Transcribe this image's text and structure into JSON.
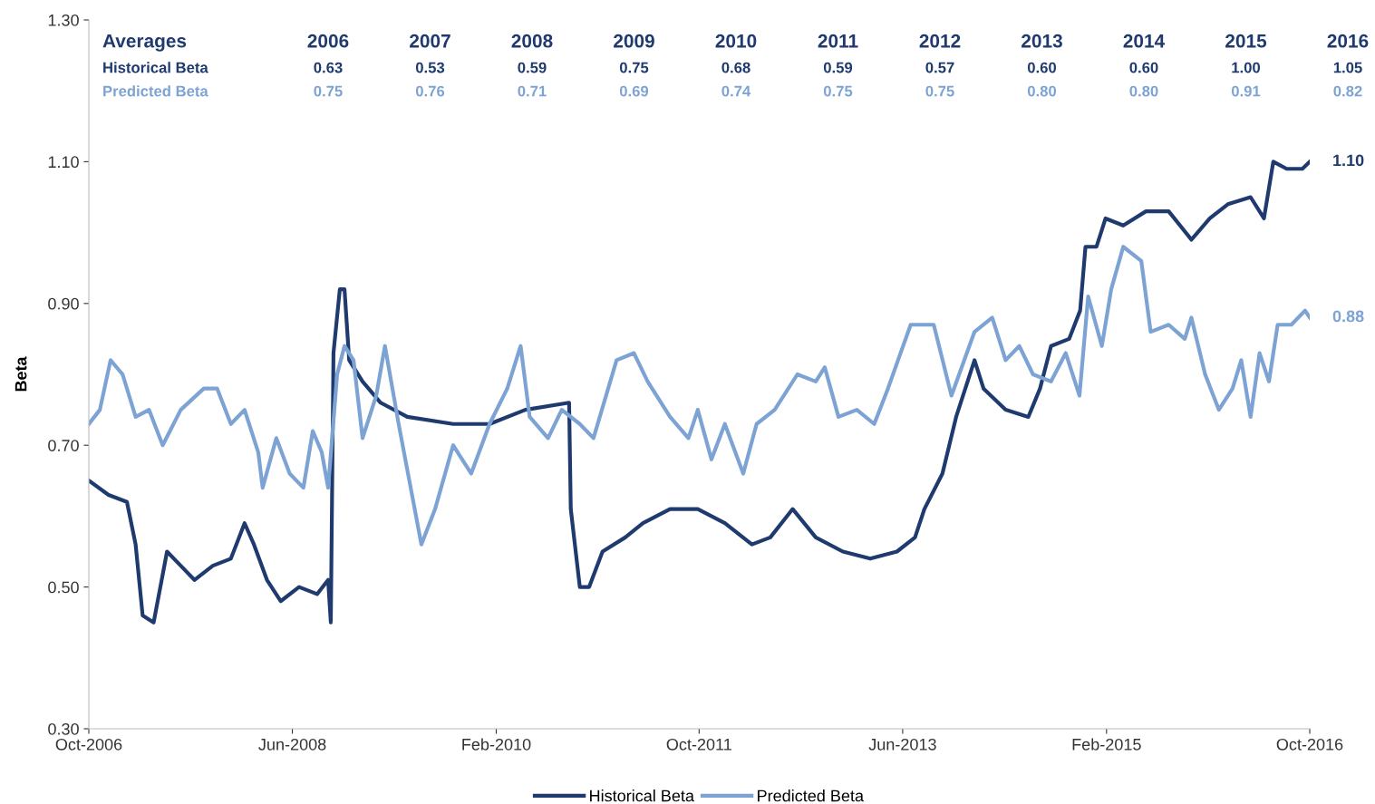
{
  "chart_data": {
    "type": "line",
    "ylabel": "Beta",
    "legend": "bottom",
    "grid": false,
    "line_style": "solid",
    "marker": "none",
    "xlim": [
      "2006-10-01",
      "2016-10-01"
    ],
    "xticks": [
      {
        "value": "2006-10-01",
        "label": "Oct-2006"
      },
      {
        "value": "2008-06-01",
        "label": "Jun-2008"
      },
      {
        "value": "2010-02-01",
        "label": "Feb-2010"
      },
      {
        "value": "2011-10-01",
        "label": "Oct-2011"
      },
      {
        "value": "2013-06-01",
        "label": "Jun-2013"
      },
      {
        "value": "2015-02-01",
        "label": "Feb-2015"
      },
      {
        "value": "2016-10-01",
        "label": "Oct-2016"
      }
    ],
    "ylim": [
      0.3,
      1.3
    ],
    "yticks": [
      {
        "value": 0.3,
        "label": "0.30"
      },
      {
        "value": 0.5,
        "label": "0.50"
      },
      {
        "value": 0.7,
        "label": "0.70"
      },
      {
        "value": 0.9,
        "label": "0.90"
      },
      {
        "value": 1.1,
        "label": "1.10"
      },
      {
        "value": 1.3,
        "label": "1.30"
      }
    ],
    "series": [
      {
        "name": "Historical Beta",
        "color": "#1f3a6e",
        "x": [
          "2006-10-01",
          "2006-11-29",
          "2007-01-23",
          "2007-02-18",
          "2007-03-11",
          "2007-04-13",
          "2007-05-23",
          "2007-07-03",
          "2007-08-13",
          "2007-10-07",
          "2007-11-30",
          "2008-01-10",
          "2008-02-07",
          "2008-03-17",
          "2008-04-27",
          "2008-06-21",
          "2008-08-14",
          "2008-09-16",
          "2008-09-24",
          "2008-10-02",
          "2008-10-21",
          "2008-11-04",
          "2008-11-18",
          "2008-12-28",
          "2009-02-20",
          "2009-05-11",
          "2009-09-25",
          "2010-01-12",
          "2010-04-29",
          "2010-09-07",
          "2010-09-12",
          "2010-10-09",
          "2010-11-06",
          "2010-12-16",
          "2011-02-22",
          "2011-04-16",
          "2011-07-06",
          "2011-09-27",
          "2011-12-17",
          "2012-03-07",
          "2012-05-01",
          "2012-07-07",
          "2012-09-14",
          "2012-12-04",
          "2013-02-24",
          "2013-05-15",
          "2013-07-08",
          "2013-08-05",
          "2013-09-28",
          "2013-11-08",
          "2014-01-02",
          "2014-01-29",
          "2014-04-05",
          "2014-06-12",
          "2014-07-17",
          "2014-08-19",
          "2014-10-12",
          "2014-11-14",
          "2014-11-30",
          "2015-01-02",
          "2015-01-29",
          "2015-03-23",
          "2015-05-30",
          "2015-08-06",
          "2015-10-13",
          "2015-12-07",
          "2016-01-30",
          "2016-04-07",
          "2016-05-17",
          "2016-06-14",
          "2016-07-24",
          "2016-09-09",
          "2016-10-01"
        ],
        "values": [
          0.65,
          0.63,
          0.62,
          0.56,
          0.46,
          0.45,
          0.55,
          0.53,
          0.51,
          0.53,
          0.54,
          0.59,
          0.56,
          0.51,
          0.48,
          0.5,
          0.49,
          0.51,
          0.45,
          0.83,
          0.92,
          0.92,
          0.82,
          0.79,
          0.76,
          0.74,
          0.73,
          0.73,
          0.75,
          0.76,
          0.61,
          0.5,
          0.5,
          0.55,
          0.57,
          0.59,
          0.61,
          0.61,
          0.59,
          0.56,
          0.57,
          0.61,
          0.57,
          0.55,
          0.54,
          0.55,
          0.57,
          0.61,
          0.66,
          0.74,
          0.82,
          0.78,
          0.75,
          0.74,
          0.78,
          0.84,
          0.85,
          0.89,
          0.98,
          0.98,
          1.02,
          1.01,
          1.03,
          1.03,
          0.99,
          1.02,
          1.04,
          1.05,
          1.02,
          1.1,
          1.09,
          1.09,
          1.1
        ]
      },
      {
        "name": "Predicted Beta",
        "color": "#7da3d4",
        "x": [
          "2006-10-01",
          "2006-11-03",
          "2006-12-05",
          "2007-01-10",
          "2007-02-18",
          "2007-03-30",
          "2007-05-10",
          "2007-07-03",
          "2007-09-10",
          "2007-10-20",
          "2007-11-30",
          "2008-01-10",
          "2008-02-20",
          "2008-03-04",
          "2008-04-14",
          "2008-05-24",
          "2008-07-04",
          "2008-08-01",
          "2008-08-28",
          "2008-09-16",
          "2008-10-13",
          "2008-11-04",
          "2008-12-01",
          "2008-12-28",
          "2009-02-07",
          "2009-03-05",
          "2009-04-15",
          "2009-06-22",
          "2009-08-02",
          "2009-09-25",
          "2009-11-18",
          "2010-01-12",
          "2010-03-06",
          "2010-04-15",
          "2010-05-12",
          "2010-07-06",
          "2010-08-16",
          "2010-10-09",
          "2010-11-19",
          "2011-01-27",
          "2011-03-20",
          "2011-04-30",
          "2011-07-06",
          "2011-08-30",
          "2011-09-27",
          "2011-11-07",
          "2011-12-17",
          "2012-02-10",
          "2012-03-21",
          "2012-05-14",
          "2012-07-21",
          "2012-09-14",
          "2012-10-11",
          "2012-11-21",
          "2013-01-15",
          "2013-03-08",
          "2013-04-18",
          "2013-06-25",
          "2013-09-02",
          "2013-10-25",
          "2014-01-02",
          "2014-02-24",
          "2014-04-05",
          "2014-05-16",
          "2014-06-26",
          "2014-08-19",
          "2014-10-02",
          "2014-11-12",
          "2014-12-08",
          "2015-01-18",
          "2015-02-15",
          "2015-03-23",
          "2015-05-16",
          "2015-06-13",
          "2015-08-06",
          "2015-09-23",
          "2015-10-13",
          "2015-11-23",
          "2016-01-03",
          "2016-02-13",
          "2016-03-10",
          "2016-04-07",
          "2016-05-04",
          "2016-06-01",
          "2016-06-27",
          "2016-08-07",
          "2016-09-17",
          "2016-10-01"
        ],
        "values": [
          0.73,
          0.75,
          0.82,
          0.8,
          0.74,
          0.75,
          0.7,
          0.75,
          0.78,
          0.78,
          0.73,
          0.75,
          0.69,
          0.64,
          0.71,
          0.66,
          0.64,
          0.72,
          0.69,
          0.64,
          0.8,
          0.84,
          0.82,
          0.71,
          0.77,
          0.84,
          0.73,
          0.56,
          0.61,
          0.7,
          0.66,
          0.73,
          0.78,
          0.84,
          0.74,
          0.71,
          0.75,
          0.73,
          0.71,
          0.82,
          0.83,
          0.79,
          0.74,
          0.71,
          0.75,
          0.68,
          0.73,
          0.66,
          0.73,
          0.75,
          0.8,
          0.79,
          0.81,
          0.74,
          0.75,
          0.73,
          0.78,
          0.87,
          0.87,
          0.77,
          0.86,
          0.88,
          0.82,
          0.84,
          0.8,
          0.79,
          0.83,
          0.77,
          0.91,
          0.84,
          0.92,
          0.98,
          0.96,
          0.86,
          0.87,
          0.85,
          0.88,
          0.8,
          0.75,
          0.78,
          0.82,
          0.74,
          0.83,
          0.79,
          0.87,
          0.87,
          0.89,
          0.88
        ]
      }
    ],
    "annotations": [
      "Averages",
      "2006",
      "2007",
      "2008",
      "2009",
      "2010",
      "2011",
      "2012",
      "2013",
      "2014",
      "2015",
      "2016",
      "Historical Beta",
      "0.63",
      "0.53",
      "0.59",
      "0.75",
      "0.68",
      "0.59",
      "0.57",
      "0.60",
      "0.60",
      "1.00",
      "1.05",
      "Predicted Beta",
      "0.75",
      "0.76",
      "0.71",
      "0.69",
      "0.74",
      "0.75",
      "0.75",
      "0.80",
      "0.80",
      "0.91",
      "0.82",
      {
        "text": "1.10",
        "x": "2016-10-01",
        "y": 1.1
      },
      {
        "text": "0.88",
        "x": "2016-10-01",
        "y": 0.88
      }
    ]
  }
}
